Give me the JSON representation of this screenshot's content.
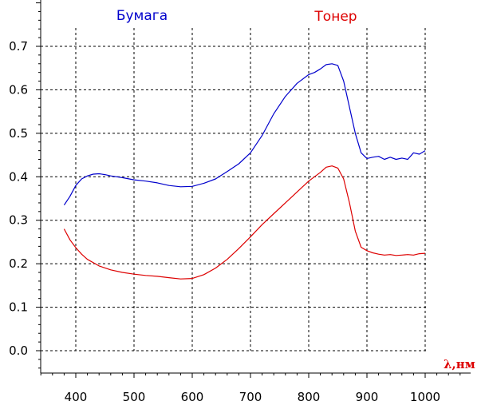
{
  "chart_data": {
    "type": "line",
    "title": "",
    "xlabel": "λ,нм",
    "ylabel": "",
    "xlim": [
      335,
      1085
    ],
    "ylim": [
      -0.05,
      0.75
    ],
    "grid": true,
    "legend_placement": "top",
    "x_ticks": [
      400,
      500,
      600,
      700,
      800,
      900,
      1000
    ],
    "x_tick_labels": [
      "400",
      "500",
      "600",
      "700",
      "800",
      "900",
      "1000"
    ],
    "y_ticks": [
      0.0,
      0.1,
      0.2,
      0.3,
      0.4,
      0.5,
      0.6,
      0.7
    ],
    "y_tick_labels": [
      "0.0",
      "0.1",
      "0.2",
      "0.3",
      "0.4",
      "0.5",
      "0.6",
      "0.7"
    ],
    "colors": {
      "paper": "#0000cc",
      "toner": "#dd0000",
      "axis": "#000000",
      "grid": "#000000"
    },
    "series": [
      {
        "name": "Бумага",
        "color": "#0000cc",
        "x": [
          380,
          390,
          400,
          410,
          420,
          430,
          440,
          450,
          460,
          480,
          500,
          520,
          540,
          560,
          580,
          600,
          620,
          640,
          660,
          680,
          700,
          720,
          740,
          760,
          780,
          800,
          810,
          820,
          830,
          840,
          850,
          860,
          870,
          880,
          890,
          900,
          910,
          920,
          930,
          940,
          950,
          960,
          970,
          980,
          990,
          1000
        ],
        "values": [
          0.335,
          0.355,
          0.38,
          0.395,
          0.402,
          0.406,
          0.407,
          0.405,
          0.402,
          0.398,
          0.393,
          0.39,
          0.386,
          0.38,
          0.377,
          0.378,
          0.385,
          0.395,
          0.412,
          0.43,
          0.455,
          0.495,
          0.545,
          0.585,
          0.615,
          0.635,
          0.64,
          0.648,
          0.658,
          0.66,
          0.656,
          0.62,
          0.56,
          0.5,
          0.455,
          0.442,
          0.445,
          0.447,
          0.44,
          0.445,
          0.44,
          0.443,
          0.44,
          0.455,
          0.452,
          0.46
        ]
      },
      {
        "name": "Тонер",
        "color": "#dd0000",
        "x": [
          380,
          390,
          400,
          410,
          420,
          440,
          460,
          480,
          500,
          520,
          540,
          560,
          580,
          600,
          620,
          640,
          660,
          680,
          700,
          720,
          740,
          760,
          780,
          800,
          820,
          830,
          840,
          850,
          860,
          870,
          880,
          890,
          900,
          910,
          920,
          930,
          940,
          950,
          960,
          970,
          980,
          990,
          1000
        ],
        "values": [
          0.28,
          0.255,
          0.237,
          0.222,
          0.21,
          0.195,
          0.186,
          0.18,
          0.176,
          0.173,
          0.171,
          0.168,
          0.165,
          0.166,
          0.175,
          0.19,
          0.21,
          0.235,
          0.262,
          0.29,
          0.315,
          0.34,
          0.365,
          0.39,
          0.41,
          0.422,
          0.425,
          0.42,
          0.395,
          0.34,
          0.275,
          0.238,
          0.23,
          0.225,
          0.222,
          0.22,
          0.221,
          0.219,
          0.22,
          0.221,
          0.22,
          0.223,
          0.224
        ]
      }
    ]
  }
}
